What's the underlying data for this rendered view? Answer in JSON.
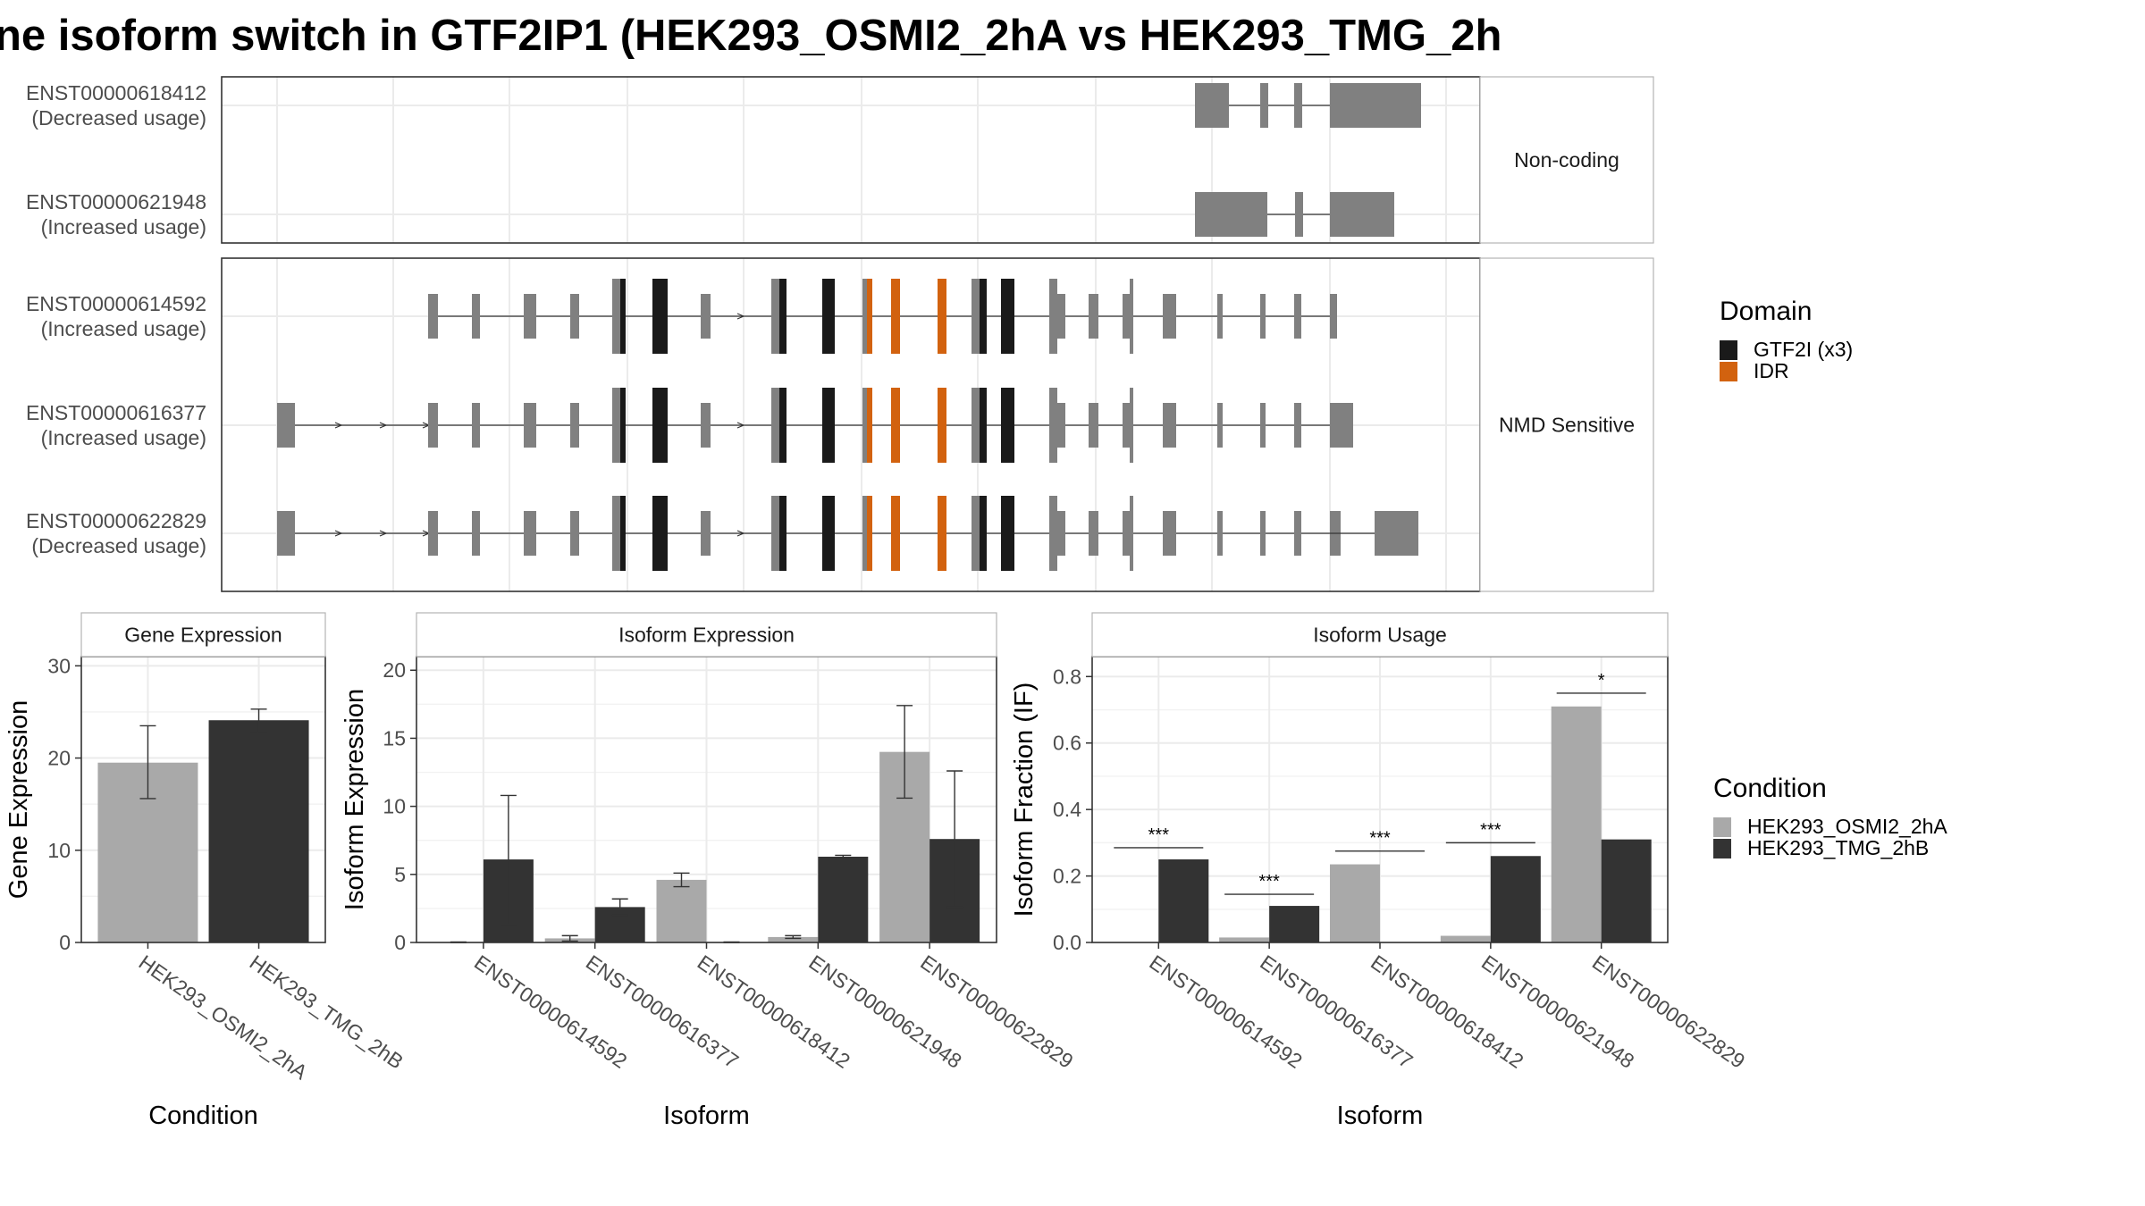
{
  "title": "ne isoform switch in GTF2IP1 (HEK293_OSMI2_2hA vs HEK293_TMG_2h",
  "colors": {
    "exon": "#808080",
    "gtf2i": "#1a1a1a",
    "idr": "#d2620f",
    "condA": "#a9a9a9",
    "condB": "#333333",
    "frame": "#333333",
    "grid": "#ebebeb"
  },
  "structure": {
    "facets": [
      {
        "label": "Non-coding",
        "rows": [
          {
            "id": "ENST00000618412",
            "usage": "(Decreased usage)"
          },
          {
            "id": "ENST00000621948",
            "usage": "(Increased usage)"
          }
        ]
      },
      {
        "label": "NMD Sensitive",
        "rows": [
          {
            "id": "ENST00000614592",
            "usage": "(Increased usage)"
          },
          {
            "id": "ENST00000616377",
            "usage": "(Increased usage)"
          },
          {
            "id": "ENST00000622829",
            "usage": "(Decreased usage)"
          }
        ]
      }
    ]
  },
  "legend_domain": {
    "title": "Domain",
    "items": [
      {
        "label": "GTF2I (x3)",
        "color": "#1a1a1a"
      },
      {
        "label": "IDR",
        "color": "#d2620f"
      }
    ]
  },
  "legend_condition": {
    "title": "Condition",
    "items": [
      {
        "label": "HEK293_OSMI2_2hA",
        "color": "#a9a9a9"
      },
      {
        "label": "HEK293_TMG_2hB",
        "color": "#333333"
      }
    ]
  },
  "chart_data": [
    {
      "type": "bar",
      "title": "Gene Expression",
      "xlabel": "Condition",
      "ylabel": "Gene Expression",
      "ylim": [
        0,
        31
      ],
      "yticks": [
        0,
        10,
        20,
        30
      ],
      "categories": [
        "HEK293_OSMI2_2hA",
        "HEK293_TMG_2hB"
      ],
      "values": [
        19.5,
        24.1
      ],
      "err_low": [
        15.6,
        22.8
      ],
      "err_high": [
        23.5,
        25.3
      ]
    },
    {
      "type": "bar",
      "title": "Isoform Expression",
      "xlabel": "Isoform",
      "ylabel": "Isoform Expression",
      "ylim": [
        0,
        21
      ],
      "yticks": [
        0,
        5,
        10,
        15,
        20
      ],
      "categories": [
        "ENST00000614592",
        "ENST00000616377",
        "ENST00000618412",
        "ENST00000621948",
        "ENST00000622829"
      ],
      "series": [
        {
          "name": "HEK293_OSMI2_2hA",
          "values": [
            0.02,
            0.3,
            4.6,
            0.4,
            14.0
          ],
          "err_low": [
            0.0,
            0.1,
            4.1,
            0.3,
            10.6
          ],
          "err_high": [
            0.04,
            0.5,
            5.1,
            0.5,
            17.4
          ]
        },
        {
          "name": "HEK293_TMG_2hB",
          "values": [
            6.1,
            2.6,
            0.02,
            6.3,
            7.6
          ],
          "err_low": [
            1.3,
            2.0,
            0.0,
            6.2,
            2.6
          ],
          "err_high": [
            10.8,
            3.2,
            0.04,
            6.4,
            12.6
          ]
        }
      ]
    },
    {
      "type": "bar",
      "title": "Isoform Usage",
      "xlabel": "Isoform",
      "ylabel": "Isoform Fraction (IF)",
      "ylim": [
        0,
        0.86
      ],
      "yticks": [
        0.0,
        0.2,
        0.4,
        0.6,
        0.8
      ],
      "ytick_labels": [
        "0.0",
        "0.2",
        "0.4",
        "0.6",
        "0.8"
      ],
      "categories": [
        "ENST00000614592",
        "ENST00000616377",
        "ENST00000618412",
        "ENST00000621948",
        "ENST00000622829"
      ],
      "series": [
        {
          "name": "HEK293_OSMI2_2hA",
          "values": [
            0.0,
            0.015,
            0.235,
            0.02,
            0.71
          ]
        },
        {
          "name": "HEK293_TMG_2hB",
          "values": [
            0.25,
            0.11,
            0.0,
            0.26,
            0.31
          ]
        }
      ],
      "significance": [
        "***",
        "***",
        "***",
        "***",
        "*"
      ],
      "significance_y": [
        0.285,
        0.145,
        0.275,
        0.3,
        0.75
      ]
    }
  ]
}
